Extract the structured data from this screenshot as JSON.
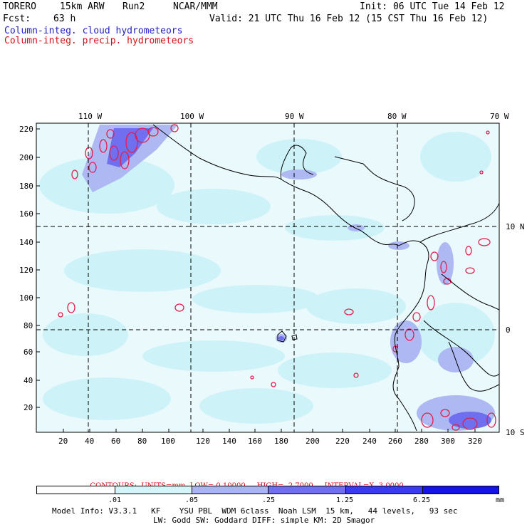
{
  "header": {
    "model": "TORERO",
    "resolution": "15km ARW",
    "run": "Run2",
    "center": "NCAR/MMM",
    "init": "Init: 06 UTC Tue 14 Feb 12",
    "fcst_label": "Fcst:",
    "fcst_value": "63 h",
    "valid": "Valid: 21 UTC Thu 16 Feb 12 (15 CST Thu 16 Feb 12)"
  },
  "legend": {
    "cloud": "Column-integ. cloud hydrometeors",
    "precip": "Column-integ. precip. hydrometeors",
    "cloud_color": "#2020c0",
    "precip_color": "#d01010"
  },
  "axes": {
    "top_lon_labels": [
      "110 W",
      "100 W",
      "90 W",
      "80 W",
      "70 W"
    ],
    "right_lat_labels": [
      "10 N",
      "0",
      "10 S"
    ],
    "left_ticks": [
      "220",
      "200",
      "180",
      "160",
      "140",
      "120",
      "100",
      "80",
      "60",
      "40",
      "20"
    ],
    "bottom_ticks": [
      "20",
      "40",
      "60",
      "80",
      "100",
      "120",
      "140",
      "160",
      "180",
      "200",
      "220",
      "240",
      "260",
      "280",
      "300",
      "320"
    ]
  },
  "contours": {
    "units": "CONTOURS:  UNITS=mm  LOW= 0.10000",
    "high": "HIGH=  2.7000",
    "interval": "INTERVAL=X  3.0000"
  },
  "colorbar": {
    "levels": [
      ".01",
      ".05",
      ".25",
      "1.25",
      "6.25"
    ],
    "unit": "mm",
    "colors": [
      "#ffffff",
      "#d4f6fa",
      "#a8b4f4",
      "#6f6ff0",
      "#3a3af0",
      "#1414e8"
    ]
  },
  "footer": {
    "line1": "Model Info: V3.3.1   KF    YSU PBL  WDM 6class  Noah LSM  15 km,   44 levels,   93 sec",
    "line2": "LW: Godd SW: Goddard DIFF: simple KM: 2D Smagor"
  }
}
